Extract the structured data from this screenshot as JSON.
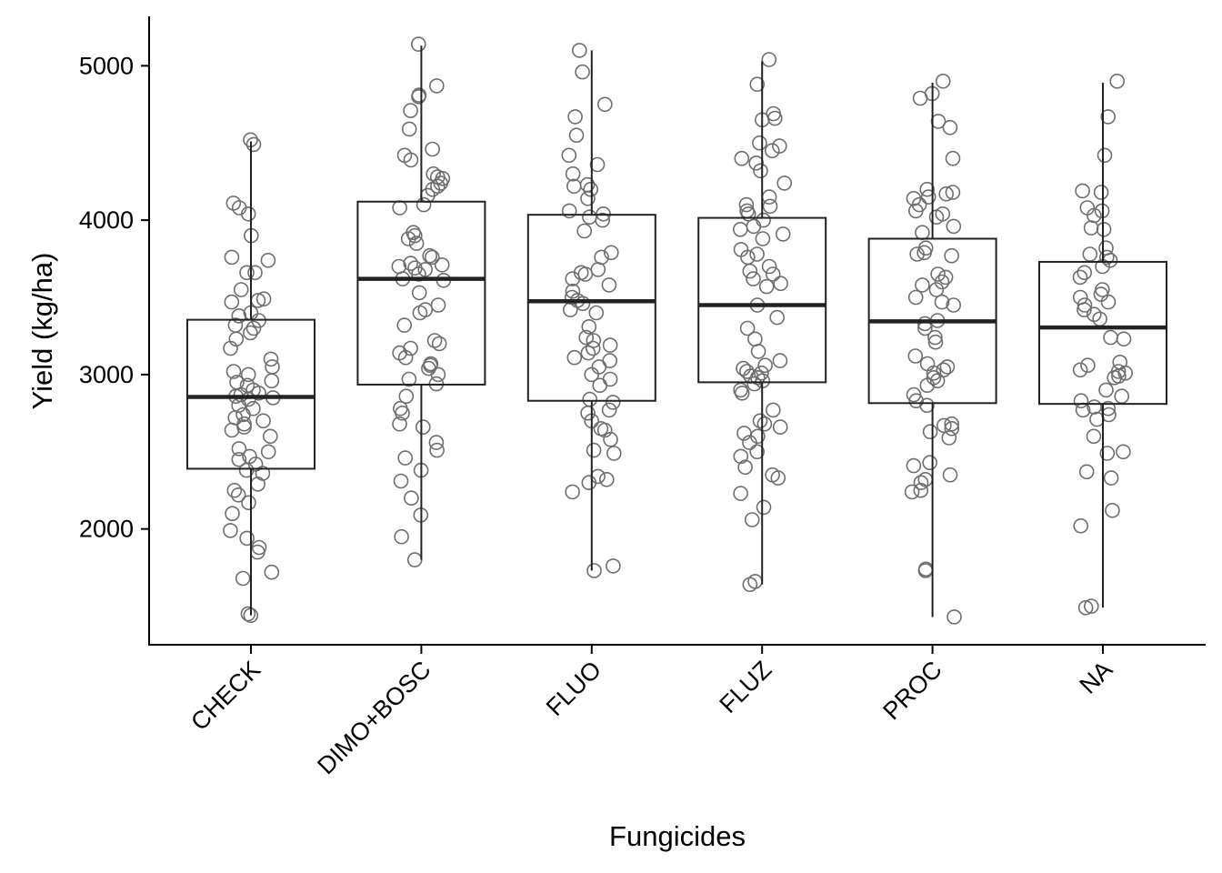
{
  "chart_data": {
    "type": "boxplot",
    "xlabel": "Fungicides",
    "ylabel": "Yield (kg/ha)",
    "ylim": [
      1250,
      5320
    ],
    "y_ticks": [
      2000,
      3000,
      4000,
      5000
    ],
    "grid": false,
    "legend": "none",
    "categories": [
      "CHECK",
      "DIMO+BOSC",
      "FLUO",
      "FLUZ",
      "PROC",
      "NA"
    ],
    "boxes": [
      {
        "category": "CHECK",
        "whisker_low": 1440,
        "q1": 2390,
        "median": 2855,
        "q3": 3355,
        "whisker_high": 4510
      },
      {
        "category": "DIMO+BOSC",
        "whisker_low": 1800,
        "q1": 2935,
        "median": 3620,
        "q3": 4120,
        "whisker_high": 5130
      },
      {
        "category": "FLUO",
        "whisker_low": 1730,
        "q1": 2830,
        "median": 3475,
        "q3": 4035,
        "whisker_high": 5100
      },
      {
        "category": "FLUZ",
        "whisker_low": 1640,
        "q1": 2950,
        "median": 3450,
        "q3": 4015,
        "whisker_high": 5030
      },
      {
        "category": "PROC",
        "whisker_low": 1430,
        "q1": 2815,
        "median": 3345,
        "q3": 3880,
        "whisker_high": 4890
      },
      {
        "category": "NA",
        "whisker_low": 1490,
        "q1": 2810,
        "median": 3305,
        "q3": 3730,
        "whisker_high": 4890
      }
    ],
    "points": [
      {
        "category": "CHECK",
        "y": [
          4520,
          4490,
          4110,
          4080,
          4040,
          3900,
          3760,
          3740,
          3660,
          3660,
          3550,
          3490,
          3480,
          3470,
          3400,
          3380,
          3350,
          3320,
          3300,
          3270,
          3230,
          3170,
          3100,
          3050,
          3020,
          3000,
          2960,
          2950,
          2930,
          2900,
          2880,
          2870,
          2860,
          2850,
          2840,
          2800,
          2780,
          2740,
          2720,
          2700,
          2680,
          2660,
          2640,
          2600,
          2520,
          2500,
          2470,
          2450,
          2420,
          2380,
          2360,
          2290,
          2250,
          2220,
          2170,
          2100,
          1990,
          1940,
          1880,
          1850,
          1720,
          1680,
          1450,
          1440
        ]
      },
      {
        "category": "DIMO+BOSC",
        "y": [
          5140,
          4870,
          4810,
          4800,
          4710,
          4590,
          4460,
          4420,
          4390,
          4300,
          4280,
          4270,
          4240,
          4220,
          4200,
          4160,
          4100,
          4080,
          3920,
          3900,
          3880,
          3850,
          3770,
          3760,
          3720,
          3710,
          3700,
          3690,
          3680,
          3650,
          3620,
          3610,
          3530,
          3450,
          3420,
          3400,
          3320,
          3220,
          3200,
          3170,
          3140,
          3110,
          3070,
          3060,
          3040,
          3000,
          2970,
          2940,
          2860,
          2780,
          2750,
          2680,
          2660,
          2560,
          2510,
          2460,
          2380,
          2310,
          2200,
          2090,
          1950,
          1800
        ]
      },
      {
        "category": "FLUO",
        "y": [
          5100,
          4960,
          4750,
          4670,
          4550,
          4420,
          4360,
          4300,
          4230,
          4220,
          4200,
          4140,
          4060,
          4040,
          4020,
          4000,
          3930,
          3790,
          3760,
          3680,
          3660,
          3650,
          3620,
          3580,
          3540,
          3500,
          3480,
          3460,
          3420,
          3400,
          3310,
          3240,
          3220,
          3190,
          3170,
          3140,
          3110,
          3090,
          3050,
          3000,
          2970,
          2930,
          2840,
          2820,
          2770,
          2750,
          2700,
          2650,
          2640,
          2580,
          2510,
          2490,
          2340,
          2320,
          2300,
          2240,
          1760,
          1730
        ]
      },
      {
        "category": "FLUZ",
        "y": [
          5040,
          4880,
          4690,
          4660,
          4650,
          4500,
          4480,
          4450,
          4400,
          4370,
          4320,
          4240,
          4150,
          4100,
          4090,
          4060,
          4040,
          4000,
          3960,
          3940,
          3910,
          3880,
          3810,
          3780,
          3760,
          3700,
          3670,
          3650,
          3620,
          3590,
          3570,
          3450,
          3370,
          3300,
          3230,
          3150,
          3090,
          3060,
          3040,
          3020,
          3010,
          2990,
          2980,
          2960,
          2940,
          2900,
          2880,
          2770,
          2700,
          2680,
          2660,
          2620,
          2600,
          2560,
          2500,
          2470,
          2400,
          2350,
          2330,
          2230,
          2140,
          2060,
          1660,
          1640
        ]
      },
      {
        "category": "PROC",
        "y": [
          4900,
          4820,
          4790,
          4640,
          4600,
          4400,
          4200,
          4180,
          4170,
          4150,
          4140,
          4100,
          4060,
          4040,
          4020,
          3960,
          3920,
          3820,
          3790,
          3780,
          3770,
          3650,
          3630,
          3600,
          3580,
          3550,
          3500,
          3470,
          3450,
          3350,
          3330,
          3300,
          3240,
          3210,
          3120,
          3070,
          3050,
          3030,
          3010,
          2980,
          2960,
          2930,
          2870,
          2830,
          2800,
          2680,
          2670,
          2650,
          2630,
          2590,
          2430,
          2410,
          2350,
          2320,
          2300,
          2250,
          2240,
          1740,
          1730,
          1430
        ]
      },
      {
        "category": "NA",
        "y": [
          4900,
          4670,
          4420,
          4190,
          4180,
          4080,
          4060,
          4030,
          3950,
          3940,
          3820,
          3780,
          3760,
          3740,
          3700,
          3660,
          3630,
          3550,
          3520,
          3500,
          3470,
          3450,
          3420,
          3390,
          3360,
          3240,
          3230,
          3080,
          3060,
          3030,
          3020,
          3010,
          2990,
          2980,
          2900,
          2860,
          2830,
          2790,
          2780,
          2770,
          2740,
          2710,
          2600,
          2500,
          2490,
          2370,
          2330,
          2120,
          2020,
          1500,
          1490
        ]
      }
    ]
  }
}
